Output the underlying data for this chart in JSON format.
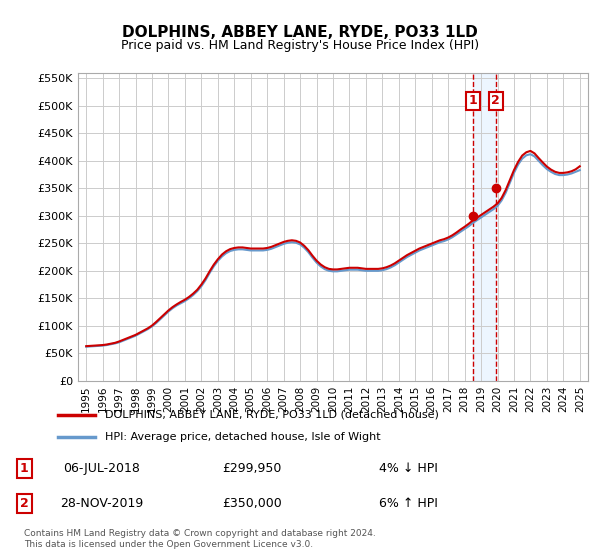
{
  "title": "DOLPHINS, ABBEY LANE, RYDE, PO33 1LD",
  "subtitle": "Price paid vs. HM Land Registry's House Price Index (HPI)",
  "legend_line1": "DOLPHINS, ABBEY LANE, RYDE, PO33 1LD (detached house)",
  "legend_line2": "HPI: Average price, detached house, Isle of Wight",
  "footnote": "Contains HM Land Registry data © Crown copyright and database right 2024.\nThis data is licensed under the Open Government Licence v3.0.",
  "sale1_label": "1",
  "sale1_date": "06-JUL-2018",
  "sale1_price": "£299,950",
  "sale1_hpi": "4% ↓ HPI",
  "sale2_label": "2",
  "sale2_date": "28-NOV-2019",
  "sale2_price": "£350,000",
  "sale2_hpi": "6% ↑ HPI",
  "sale1_x": 2018.5,
  "sale2_x": 2019.9,
  "ylim_min": 0,
  "ylim_max": 560000,
  "xlim_min": 1994.5,
  "xlim_max": 2025.5,
  "yticks": [
    0,
    50000,
    100000,
    150000,
    200000,
    250000,
    300000,
    350000,
    400000,
    450000,
    500000,
    550000
  ],
  "ytick_labels": [
    "£0",
    "£50K",
    "£100K",
    "£150K",
    "£200K",
    "£250K",
    "£300K",
    "£350K",
    "£400K",
    "£450K",
    "£500K",
    "£550K"
  ],
  "xticks": [
    1995,
    1996,
    1997,
    1998,
    1999,
    2000,
    2001,
    2002,
    2003,
    2004,
    2005,
    2006,
    2007,
    2008,
    2009,
    2010,
    2011,
    2012,
    2013,
    2014,
    2015,
    2016,
    2017,
    2018,
    2019,
    2020,
    2021,
    2022,
    2023,
    2024,
    2025
  ],
  "hpi_color": "#6699cc",
  "price_color": "#cc0000",
  "sale1_dot_color": "#cc0000",
  "sale2_dot_color": "#cc0000",
  "grid_color": "#cccccc",
  "bg_color": "#ffffff",
  "vline_color": "#cc0000",
  "shade_color": "#ddeeff",
  "hpi_data_x": [
    1995.0,
    1995.25,
    1995.5,
    1995.75,
    1996.0,
    1996.25,
    1996.5,
    1996.75,
    1997.0,
    1997.25,
    1997.5,
    1997.75,
    1998.0,
    1998.25,
    1998.5,
    1998.75,
    1999.0,
    1999.25,
    1999.5,
    1999.75,
    2000.0,
    2000.25,
    2000.5,
    2000.75,
    2001.0,
    2001.25,
    2001.5,
    2001.75,
    2002.0,
    2002.25,
    2002.5,
    2002.75,
    2003.0,
    2003.25,
    2003.5,
    2003.75,
    2004.0,
    2004.25,
    2004.5,
    2004.75,
    2005.0,
    2005.25,
    2005.5,
    2005.75,
    2006.0,
    2006.25,
    2006.5,
    2006.75,
    2007.0,
    2007.25,
    2007.5,
    2007.75,
    2008.0,
    2008.25,
    2008.5,
    2008.75,
    2009.0,
    2009.25,
    2009.5,
    2009.75,
    2010.0,
    2010.25,
    2010.5,
    2010.75,
    2011.0,
    2011.25,
    2011.5,
    2011.75,
    2012.0,
    2012.25,
    2012.5,
    2012.75,
    2013.0,
    2013.25,
    2013.5,
    2013.75,
    2014.0,
    2014.25,
    2014.5,
    2014.75,
    2015.0,
    2015.25,
    2015.5,
    2015.75,
    2016.0,
    2016.25,
    2016.5,
    2016.75,
    2017.0,
    2017.25,
    2017.5,
    2017.75,
    2018.0,
    2018.25,
    2018.5,
    2018.75,
    2019.0,
    2019.25,
    2019.5,
    2019.75,
    2020.0,
    2020.25,
    2020.5,
    2020.75,
    2021.0,
    2021.25,
    2021.5,
    2021.75,
    2022.0,
    2022.25,
    2022.5,
    2022.75,
    2023.0,
    2023.25,
    2023.5,
    2023.75,
    2024.0,
    2024.25,
    2024.5,
    2024.75,
    2025.0
  ],
  "hpi_data_y": [
    62000,
    62500,
    63000,
    63500,
    64000,
    65000,
    66500,
    68000,
    70000,
    73000,
    76000,
    79000,
    82000,
    86000,
    90000,
    94000,
    99000,
    105000,
    112000,
    119000,
    126000,
    132000,
    137000,
    141000,
    145000,
    150000,
    156000,
    163000,
    172000,
    183000,
    196000,
    208000,
    218000,
    226000,
    232000,
    236000,
    238000,
    239000,
    239000,
    238000,
    237000,
    237000,
    237000,
    237000,
    238000,
    240000,
    243000,
    246000,
    249000,
    251000,
    252000,
    251000,
    248000,
    242000,
    234000,
    224000,
    215000,
    208000,
    203000,
    200000,
    199000,
    199000,
    200000,
    201000,
    202000,
    202000,
    202000,
    201000,
    200000,
    200000,
    200000,
    200000,
    201000,
    203000,
    206000,
    210000,
    215000,
    220000,
    225000,
    229000,
    233000,
    237000,
    240000,
    243000,
    246000,
    249000,
    252000,
    254000,
    257000,
    261000,
    266000,
    271000,
    276000,
    281000,
    287000,
    292000,
    297000,
    302000,
    307000,
    312000,
    318000,
    328000,
    342000,
    360000,
    378000,
    393000,
    404000,
    410000,
    412000,
    408000,
    400000,
    392000,
    385000,
    380000,
    376000,
    374000,
    374000,
    375000,
    377000,
    380000,
    383000
  ],
  "price_data_x": [
    1995.0,
    1995.25,
    1995.5,
    1995.75,
    1996.0,
    1996.25,
    1996.5,
    1996.75,
    1997.0,
    1997.25,
    1997.5,
    1997.75,
    1998.0,
    1998.25,
    1998.5,
    1998.75,
    1999.0,
    1999.25,
    1999.5,
    1999.75,
    2000.0,
    2000.25,
    2000.5,
    2000.75,
    2001.0,
    2001.25,
    2001.5,
    2001.75,
    2002.0,
    2002.25,
    2002.5,
    2002.75,
    2003.0,
    2003.25,
    2003.5,
    2003.75,
    2004.0,
    2004.25,
    2004.5,
    2004.75,
    2005.0,
    2005.25,
    2005.5,
    2005.75,
    2006.0,
    2006.25,
    2006.5,
    2006.75,
    2007.0,
    2007.25,
    2007.5,
    2007.75,
    2008.0,
    2008.25,
    2008.5,
    2008.75,
    2009.0,
    2009.25,
    2009.5,
    2009.75,
    2010.0,
    2010.25,
    2010.5,
    2010.75,
    2011.0,
    2011.25,
    2011.5,
    2011.75,
    2012.0,
    2012.25,
    2012.5,
    2012.75,
    2013.0,
    2013.25,
    2013.5,
    2013.75,
    2014.0,
    2014.25,
    2014.5,
    2014.75,
    2015.0,
    2015.25,
    2015.5,
    2015.75,
    2016.0,
    2016.25,
    2016.5,
    2016.75,
    2017.0,
    2017.25,
    2017.5,
    2017.75,
    2018.0,
    2018.25,
    2018.5,
    2018.75,
    2019.0,
    2019.25,
    2019.5,
    2019.75,
    2020.0,
    2020.25,
    2020.5,
    2020.75,
    2021.0,
    2021.25,
    2021.5,
    2021.75,
    2022.0,
    2022.25,
    2022.5,
    2022.75,
    2023.0,
    2023.25,
    2023.5,
    2023.75,
    2024.0,
    2024.25,
    2024.5,
    2024.75,
    2025.0
  ],
  "price_data_y": [
    63000,
    63500,
    64000,
    64500,
    65000,
    66000,
    67500,
    69000,
    71500,
    74500,
    77500,
    80500,
    83500,
    87500,
    91500,
    95500,
    100500,
    107000,
    114000,
    121000,
    128000,
    134000,
    139000,
    143500,
    147500,
    152500,
    158500,
    165500,
    175000,
    186000,
    199000,
    211000,
    221000,
    229500,
    235500,
    239500,
    241500,
    242500,
    242500,
    241500,
    240500,
    240500,
    240500,
    240500,
    241500,
    243500,
    246500,
    249500,
    252500,
    254500,
    255500,
    254500,
    251500,
    245500,
    237500,
    227500,
    218500,
    211500,
    206500,
    203500,
    202500,
    202500,
    203500,
    204500,
    205500,
    205500,
    205500,
    204500,
    203500,
    203500,
    203500,
    203500,
    204500,
    206500,
    209500,
    213500,
    218500,
    223500,
    228500,
    232500,
    236500,
    240500,
    243500,
    246500,
    249500,
    252500,
    255500,
    257500,
    260500,
    264500,
    269500,
    275000,
    280000,
    285500,
    291500,
    296500,
    301500,
    306500,
    311500,
    316500,
    322500,
    332500,
    347000,
    365000,
    383000,
    398000,
    409500,
    415500,
    418000,
    413500,
    405000,
    397000,
    389500,
    384000,
    380000,
    378000,
    378000,
    379000,
    381000,
    384500,
    390000
  ]
}
